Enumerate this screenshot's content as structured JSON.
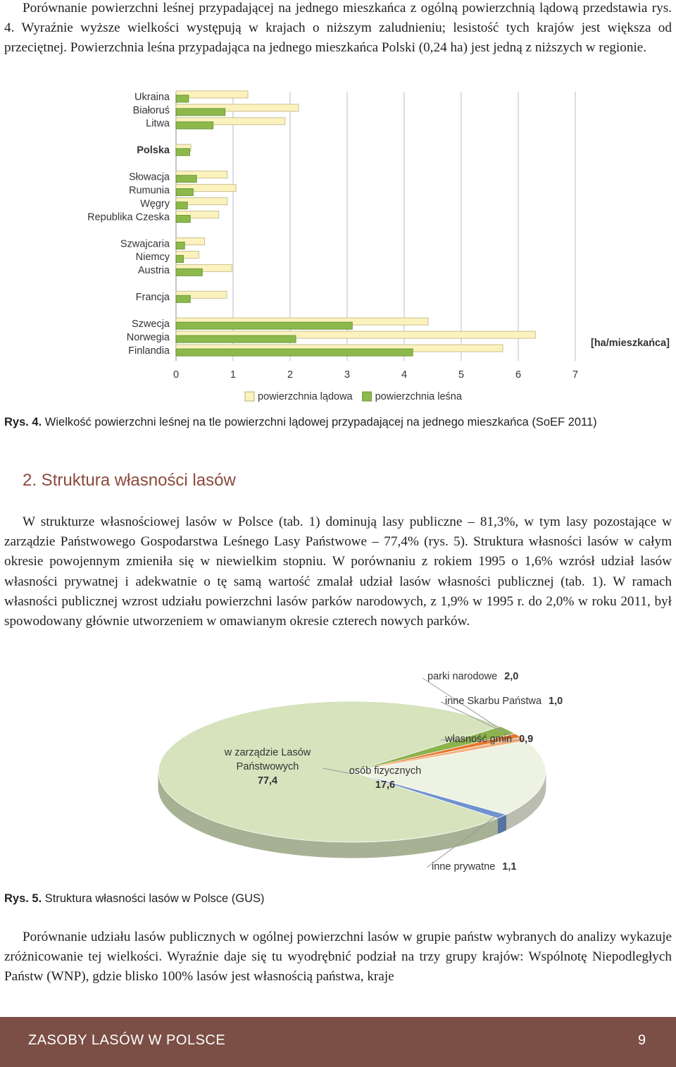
{
  "paragraphs": [
    "Porównanie powierzchni leśnej przypadającej na jednego mieszkańca z ogólną powierzchnią lądową przedstawia rys. 4. Wyraźnie wyższe wielkości występują w krajach o niższym zaludnieniu; lesistość tych krajów jest większa od przeciętnej. Powierzchnia leśna przypadająca na jednego mieszkańca Polski (0,24 ha) jest jedną z niższych w regionie.",
    "W strukturze własnościowej lasów w Polsce (tab. 1) dominują lasy publiczne – 81,3%, w tym lasy pozostające w zarządzie Państwowego Gospodarstwa Leśnego Lasy Państwowe – 77,4% (rys. 5). Struktura własności lasów w całym okresie powojennym zmieniła się w niewielkim stopniu. W porównaniu z rokiem 1995 o 1,6% wzrósł udział lasów własności prywatnej i adekwatnie o tę samą wartość zmalał udział lasów własności publicznej (tab. 1). W ramach własności publicznej wzrost udziału powierzchni lasów parków narodowych, z 1,9% w 1995 r. do 2,0% w roku 2011, był spowodowany głównie utworzeniem w omawianym okresie czterech nowych parków.",
    "Porównanie udziału lasów publicznych w ogólnej powierzchni lasów w grupie państw wybranych do analizy wykazuje zróżnicowanie tej wielkości. Wyraźnie daje się tu wyodrębnić podział na trzy grupy krajów: Wspólnotę Niepodległych Państw (WNP), gdzie blisko 100% lasów jest własnością państwa, kraje"
  ],
  "section_heading": "2. Struktura własności lasów",
  "captions": [
    {
      "label": "Rys. 4.",
      "text": "Wielkość powierzchni leśnej na tle powierzchni lądowej przypadającej na jednego mieszkańca (SoEF 2011)"
    },
    {
      "label": "Rys. 5.",
      "text": "Struktura własności lasów w Polsce (GUS)"
    }
  ],
  "footer": {
    "title": "ZASOBY LASÓW W POLSCE",
    "page": 9
  },
  "chart_data": [
    {
      "type": "bar",
      "orientation": "horizontal",
      "categories": [
        "Ukraina",
        "Białoruś",
        "Litwa",
        null,
        "Polska",
        null,
        "Słowacja",
        "Rumunia",
        "Węgry",
        "Republika Czeska",
        null,
        "Szwajcaria",
        "Niemcy",
        "Austria",
        null,
        "Francja",
        null,
        "Szwecja",
        "Norwegia",
        "Finlandia"
      ],
      "highlight_index": 4,
      "series": [
        {
          "name": "powierzchnia lądowa",
          "color": "#fbf2bd",
          "values": [
            1.26,
            2.15,
            1.91,
            null,
            0.26,
            null,
            0.9,
            1.05,
            0.9,
            0.75,
            null,
            0.5,
            0.4,
            0.98,
            null,
            0.89,
            null,
            4.42,
            6.3,
            5.73
          ]
        },
        {
          "name": "powierzchnia leśna",
          "color": "#8cb84c",
          "values": [
            0.22,
            0.86,
            0.65,
            null,
            0.24,
            null,
            0.36,
            0.3,
            0.2,
            0.25,
            null,
            0.15,
            0.13,
            0.46,
            null,
            0.25,
            null,
            3.09,
            2.1,
            4.15
          ]
        }
      ],
      "xlim": [
        0,
        7
      ],
      "xticks": [
        0,
        1,
        2,
        3,
        4,
        5,
        6,
        7
      ],
      "x_unit_label": "[ha/mieszkańca]",
      "grid": true,
      "legend": "bottom"
    },
    {
      "type": "pie",
      "categories": [
        "parki narodowe",
        "inne Skarbu Państwa",
        "własność gmin",
        "osób fizycznych",
        "inne prywatne",
        "w zarządzie Lasów Państwowych"
      ],
      "values": [
        2.0,
        1.0,
        0.9,
        17.6,
        1.1,
        77.4
      ],
      "value_labels": [
        "2,0",
        "1,0",
        "0,9",
        "17,6",
        "1,1",
        "77,4"
      ],
      "colors": [
        "#8db34d",
        "#e8782f",
        "#f2b07a",
        "#eef2e2",
        "#6f93cf",
        "#d6e3bd"
      ]
    }
  ]
}
